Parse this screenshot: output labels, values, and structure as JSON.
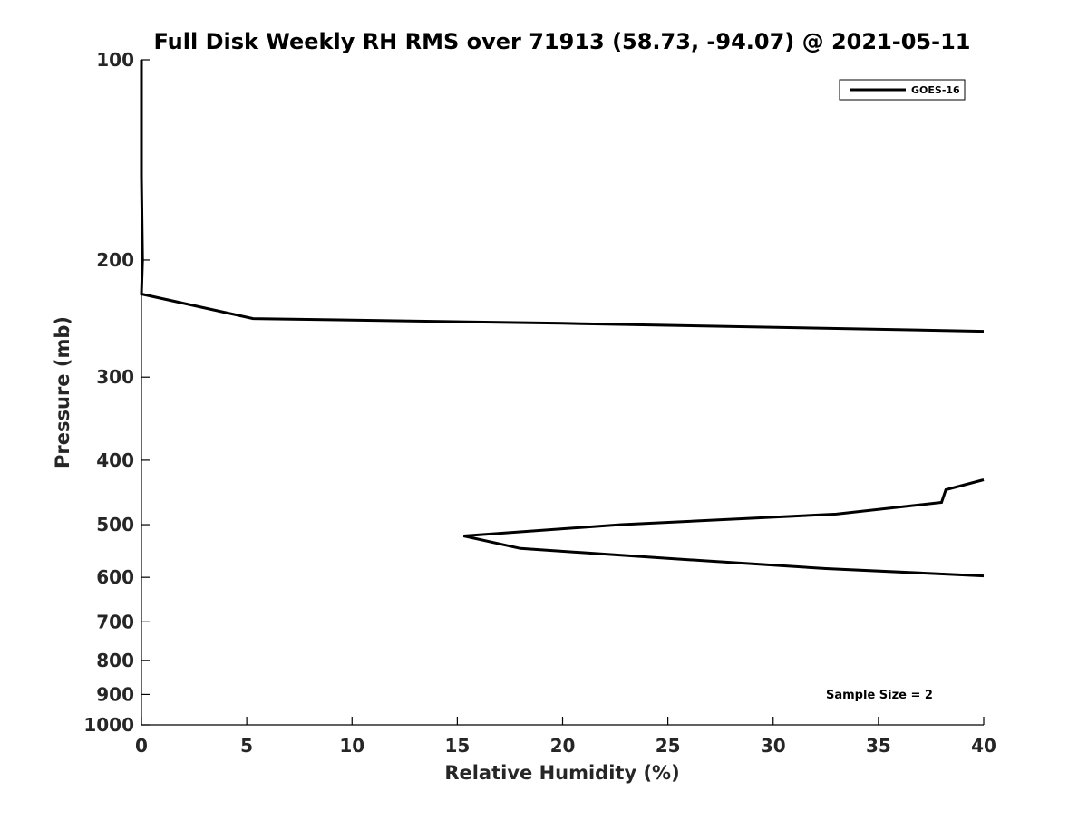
{
  "chart_data": {
    "type": "line",
    "title": "Full Disk Weekly RH RMS over 71913 (58.73, -94.07) @ 2021-05-11",
    "xlabel": "Relative Humidity (%)",
    "ylabel": "Pressure (mb)",
    "xlim": [
      0,
      40
    ],
    "ylim": [
      100,
      1000
    ],
    "y_scale": "log",
    "y_reversed": true,
    "x_ticks": [
      0,
      5,
      10,
      15,
      20,
      25,
      30,
      35,
      40
    ],
    "y_ticks": [
      100,
      200,
      300,
      400,
      500,
      600,
      700,
      800,
      900,
      1000
    ],
    "grid": false,
    "legend_position": "top-right",
    "series": [
      {
        "name": "GOES-16",
        "color": "#000000",
        "segments": [
          [
            {
              "x": 0,
              "y": 100
            },
            {
              "x": 0,
              "y": 150
            },
            {
              "x": 0.05,
              "y": 200
            },
            {
              "x": 0,
              "y": 225
            },
            {
              "x": 5.3,
              "y": 245
            },
            {
              "x": 20,
              "y": 249
            },
            {
              "x": 40,
              "y": 256
            }
          ],
          [
            {
              "x": 40,
              "y": 428
            },
            {
              "x": 38.2,
              "y": 443
            },
            {
              "x": 38.0,
              "y": 463
            },
            {
              "x": 33.0,
              "y": 482
            },
            {
              "x": 22.8,
              "y": 500
            },
            {
              "x": 15.3,
              "y": 520
            },
            {
              "x": 18.0,
              "y": 543
            },
            {
              "x": 25.0,
              "y": 562
            },
            {
              "x": 32.5,
              "y": 582
            },
            {
              "x": 40,
              "y": 597
            }
          ]
        ]
      }
    ],
    "annotations": [
      "Sample Size = 2"
    ]
  }
}
